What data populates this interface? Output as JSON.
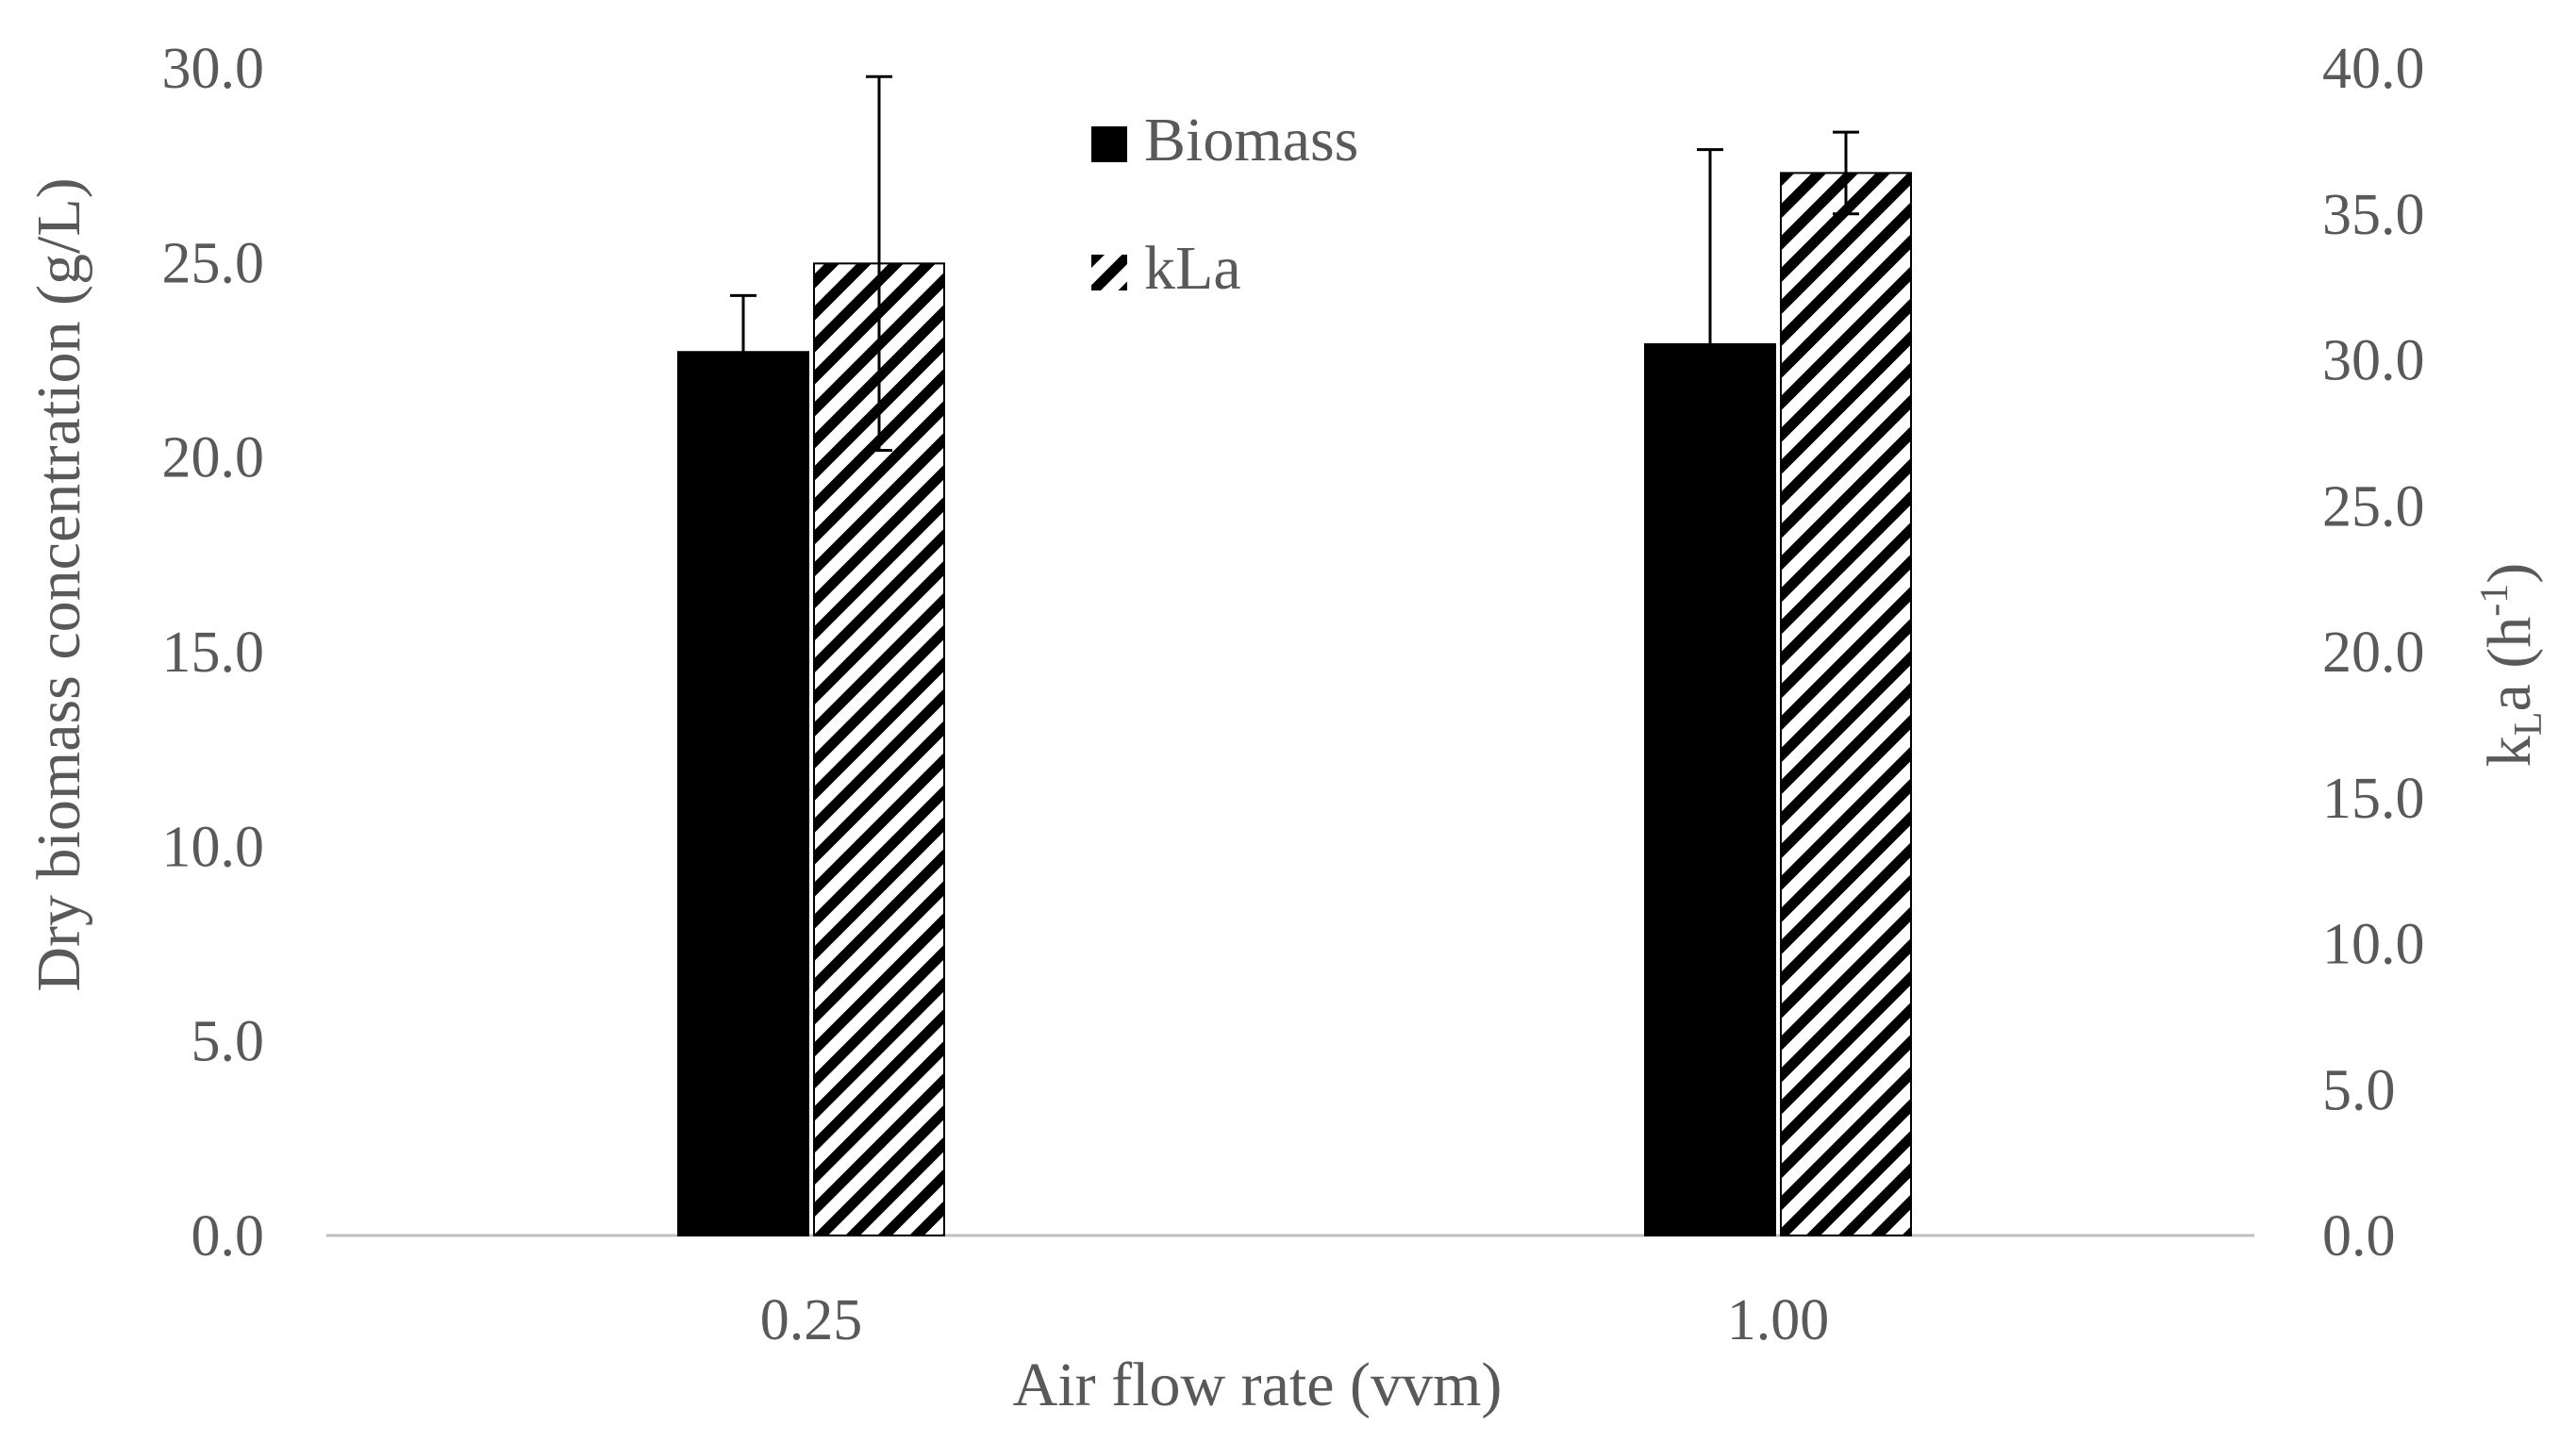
{
  "chart_data": {
    "type": "bar",
    "title": "",
    "xlabel": "Air flow rate (vvm)",
    "ylabel": "Dry biomass concentration (g/L)",
    "y2label": {
      "base": "k",
      "subscript": "L",
      "middle": "a (h",
      "superscript": "-1",
      "end": ")"
    },
    "categories": [
      "0.25",
      "1.00"
    ],
    "ylim": [
      0,
      30
    ],
    "y2lim": [
      0,
      40
    ],
    "yticks": [
      "0.0",
      "5.0",
      "10.0",
      "15.0",
      "20.0",
      "25.0",
      "30.0"
    ],
    "y2ticks": [
      "0.0",
      "5.0",
      "10.0",
      "15.0",
      "20.0",
      "25.0",
      "30.0",
      "35.0",
      "40.0"
    ],
    "grid": false,
    "legend_position": "top-center",
    "series": [
      {
        "name": "Biomass",
        "axis": "left",
        "pattern": "solid",
        "color": "#000000",
        "values": [
          22.7,
          22.9
        ],
        "errors": [
          1.45,
          5.0
        ]
      },
      {
        "name": "kLa",
        "axis": "right",
        "pattern": "diagonal-hatch",
        "color": "#000000",
        "values": [
          33.3,
          36.4
        ],
        "errors": [
          6.4,
          1.4
        ]
      }
    ]
  },
  "colors": {
    "text": "#595959",
    "axis_line": "#bfbfbf",
    "bar": "#000000",
    "background": "#ffffff"
  }
}
